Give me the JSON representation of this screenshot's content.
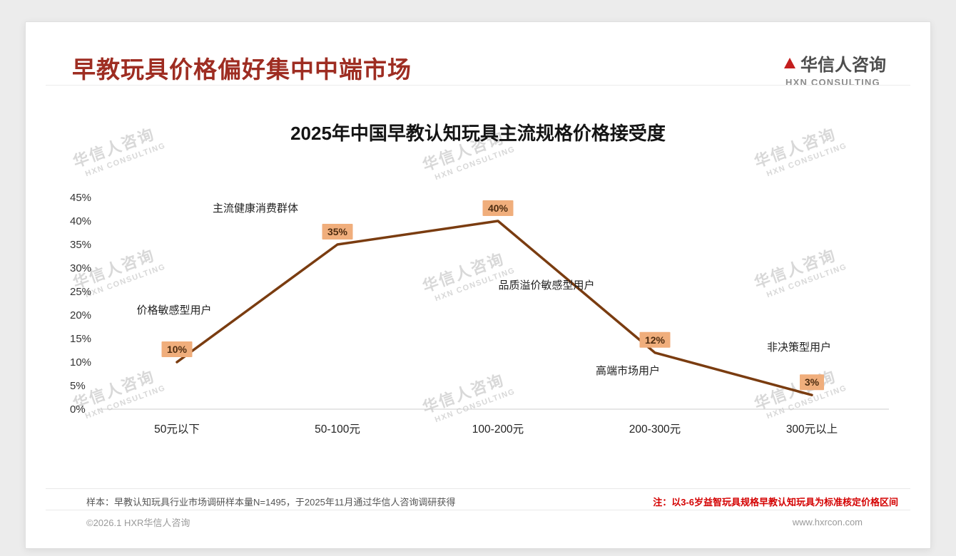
{
  "header": {
    "title": "早教玩具价格偏好集中中端市场",
    "logo_name": "华信人咨询",
    "logo_sub": "HXN CONSULTING"
  },
  "chart_data": {
    "type": "line",
    "title": "2025年中国早教认知玩具主流规格价格接受度",
    "categories": [
      "50元以下",
      "50-100元",
      "100-200元",
      "200-300元",
      "300元以上"
    ],
    "values": [
      10,
      35,
      40,
      12,
      3
    ],
    "value_labels": [
      "10%",
      "35%",
      "40%",
      "12%",
      "3%"
    ],
    "annotations": [
      "价格敏感型用户",
      "主流健康消费群体",
      "品质溢价敏感型用户",
      "高端市场用户",
      "非决策型用户"
    ],
    "xlabel": "",
    "ylabel": "",
    "ylim": [
      0,
      45
    ],
    "ytick_step": 5,
    "grid": false,
    "legend": "none",
    "line_color": "#7a3c10",
    "label_bg": "#f0ae7c"
  },
  "notes": {
    "sample": "样本：早教认知玩具行业市场调研样本量N=1495，于2025年11月通过华信人咨询调研获得",
    "standard": "注：以3-6岁益智玩具规格早教认知玩具为标准核定价格区间"
  },
  "footer": {
    "copyright": "©2026.1 HXR华信人咨询",
    "website": "www.hxrcon.com"
  },
  "watermark": {
    "line1": "华信人咨询",
    "line2": "HXN CONSULTING"
  }
}
